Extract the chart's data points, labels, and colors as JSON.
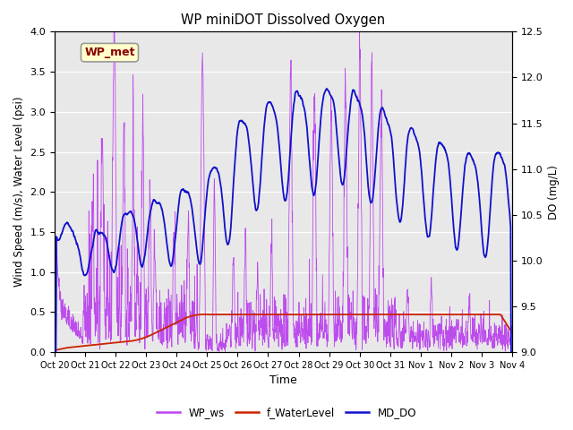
{
  "title": "WP miniDOT Dissolved Oxygen",
  "xlabel": "Time",
  "ylabel_left": "Wind Speed (m/s), Water Level (psi)",
  "ylabel_right": "DO (mg/L)",
  "ylim_left": [
    0.0,
    4.0
  ],
  "ylim_right": [
    9.0,
    12.5
  ],
  "yticks_left": [
    0.0,
    0.5,
    1.0,
    1.5,
    2.0,
    2.5,
    3.0,
    3.5,
    4.0
  ],
  "yticks_right": [
    9.0,
    9.5,
    10.0,
    10.5,
    11.0,
    11.5,
    12.0,
    12.5
  ],
  "xtick_labels": [
    "Oct 20",
    "Oct 21",
    "Oct 22",
    "Oct 23",
    "Oct 24",
    "Oct 25",
    "Oct 26",
    "Oct 27",
    "Oct 28",
    "Oct 29",
    "Oct 30",
    "Oct 31",
    "Nov 1",
    "Nov 2",
    "Nov 3",
    "Nov 4"
  ],
  "wp_ws_color": "#bb44ee",
  "f_waterlevel_color": "#cc2200",
  "md_do_color": "#1111cc",
  "legend_labels": [
    "WP_ws",
    "f_WaterLevel",
    "MD_DO"
  ],
  "annotation_text": "WP_met",
  "annotation_color": "#880000",
  "annotation_bg": "#ffffcc",
  "annotation_border": "#999999",
  "background_color": "#e8e8e8",
  "grid_color": "white"
}
